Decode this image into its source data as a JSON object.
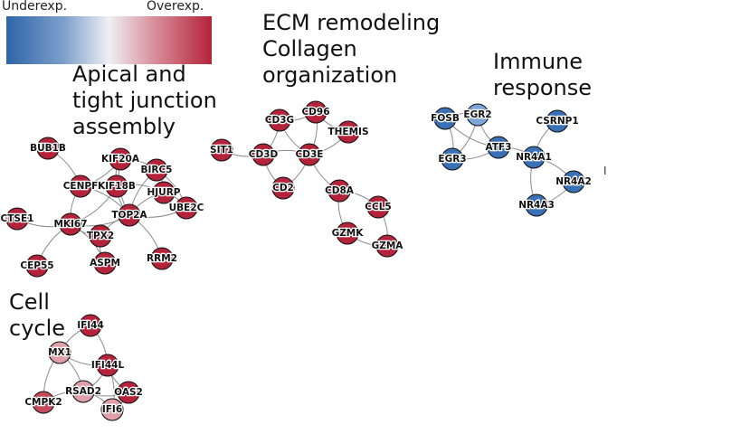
{
  "legend": {
    "low_label": "Underexp.",
    "high_label": "Overexp."
  },
  "colors": {
    "high": "#b4233a",
    "mid_high": "#c54a5b",
    "light_pink": "#e0a0aa",
    "low": "#3a70b5",
    "light_blue": "#7ea5d6"
  },
  "clusters": [
    {
      "id": "apical",
      "label": "Apical and\ntight junction\nassembly"
    },
    {
      "id": "ecm",
      "label": "ECM remodeling\nCollagen\norganization"
    },
    {
      "id": "immune",
      "label": "Immune\nresponse"
    },
    {
      "id": "cellcycle",
      "label": "Cell\ncycle"
    }
  ],
  "stray_mark": "I",
  "nodes": [
    {
      "id": "BUB1B",
      "color": "#b4233a"
    },
    {
      "id": "KIF20A",
      "color": "#b4233a"
    },
    {
      "id": "BIRC5",
      "color": "#b4233a"
    },
    {
      "id": "CENPF",
      "color": "#b4233a"
    },
    {
      "id": "KIF18B",
      "color": "#b4233a"
    },
    {
      "id": "HJURP",
      "color": "#b4233a"
    },
    {
      "id": "UBE2C",
      "color": "#b4233a"
    },
    {
      "id": "TOP2A",
      "color": "#b4233a"
    },
    {
      "id": "CTSE1",
      "color": "#b4233a"
    },
    {
      "id": "MKI67",
      "color": "#b4233a"
    },
    {
      "id": "TPX2",
      "color": "#b4233a"
    },
    {
      "id": "RRM2",
      "color": "#b4233a"
    },
    {
      "id": "ASPM",
      "color": "#b4233a"
    },
    {
      "id": "CEP55",
      "color": "#b4233a"
    },
    {
      "id": "CD3G",
      "color": "#b4233a"
    },
    {
      "id": "CD96",
      "color": "#b4233a"
    },
    {
      "id": "THEMIS",
      "color": "#b4233a"
    },
    {
      "id": "SIT1",
      "color": "#b4233a"
    },
    {
      "id": "CD3D",
      "color": "#b4233a"
    },
    {
      "id": "CD3E",
      "color": "#b4233a"
    },
    {
      "id": "CD2",
      "color": "#b4233a"
    },
    {
      "id": "CD8A",
      "color": "#b4233a"
    },
    {
      "id": "CCL5",
      "color": "#b4233a"
    },
    {
      "id": "GZMK",
      "color": "#b4233a"
    },
    {
      "id": "GZMA",
      "color": "#b4233a"
    },
    {
      "id": "FOSB",
      "color": "#3a70b5"
    },
    {
      "id": "EGR2",
      "color": "#7ea5d6"
    },
    {
      "id": "ATF3",
      "color": "#3a70b5"
    },
    {
      "id": "EGR3",
      "color": "#3a70b5"
    },
    {
      "id": "CSRNP1",
      "color": "#3a70b5"
    },
    {
      "id": "NR4A1",
      "color": "#3a70b5"
    },
    {
      "id": "NR4A2",
      "color": "#3a70b5"
    },
    {
      "id": "NR4A3",
      "color": "#3a70b5"
    },
    {
      "id": "IFI44",
      "color": "#b4233a"
    },
    {
      "id": "MX1",
      "color": "#e0a0aa"
    },
    {
      "id": "IFI44L",
      "color": "#b4233a"
    },
    {
      "id": "RSAD2",
      "color": "#e0a0aa"
    },
    {
      "id": "OAS2",
      "color": "#b4233a"
    },
    {
      "id": "CMPK2",
      "color": "#c54a5b"
    },
    {
      "id": "IFI6",
      "color": "#e0a0aa"
    }
  ],
  "edges": [
    [
      "BUB1B",
      "CENPF"
    ],
    [
      "CENPF",
      "KIF20A"
    ],
    [
      "CENPF",
      "KIF18B"
    ],
    [
      "CENPF",
      "MKI67"
    ],
    [
      "CENPF",
      "TOP2A"
    ],
    [
      "KIF20A",
      "KIF18B"
    ],
    [
      "KIF20A",
      "BIRC5"
    ],
    [
      "KIF20A",
      "TOP2A"
    ],
    [
      "BIRC5",
      "HJURP"
    ],
    [
      "BIRC5",
      "TOP2A"
    ],
    [
      "BIRC5",
      "UBE2C"
    ],
    [
      "KIF18B",
      "TOP2A"
    ],
    [
      "KIF18B",
      "HJURP"
    ],
    [
      "HJURP",
      "TOP2A"
    ],
    [
      "HJURP",
      "UBE2C"
    ],
    [
      "TOP2A",
      "UBE2C"
    ],
    [
      "TOP2A",
      "MKI67"
    ],
    [
      "TOP2A",
      "TPX2"
    ],
    [
      "TOP2A",
      "RRM2"
    ],
    [
      "MKI67",
      "TPX2"
    ],
    [
      "MKI67",
      "CTSE1"
    ],
    [
      "MKI67",
      "CEP55"
    ],
    [
      "MKI67",
      "ASPM"
    ],
    [
      "TPX2",
      "ASPM"
    ],
    [
      "KIF18B",
      "MKI67"
    ],
    [
      "CD3G",
      "CD96"
    ],
    [
      "CD3G",
      "CD3D"
    ],
    [
      "CD3G",
      "CD3E"
    ],
    [
      "CD96",
      "CD3E"
    ],
    [
      "CD96",
      "THEMIS"
    ],
    [
      "THEMIS",
      "CD3E"
    ],
    [
      "SIT1",
      "CD3D"
    ],
    [
      "CD3D",
      "CD3E"
    ],
    [
      "CD3D",
      "CD2"
    ],
    [
      "CD3E",
      "CD2"
    ],
    [
      "CD3E",
      "CD8A"
    ],
    [
      "CD8A",
      "CCL5"
    ],
    [
      "CD8A",
      "GZMK"
    ],
    [
      "CCL5",
      "GZMA"
    ],
    [
      "GZMK",
      "GZMA"
    ],
    [
      "FOSB",
      "EGR2"
    ],
    [
      "FOSB",
      "ATF3"
    ],
    [
      "FOSB",
      "EGR3"
    ],
    [
      "EGR2",
      "ATF3"
    ],
    [
      "EGR2",
      "EGR3"
    ],
    [
      "EGR3",
      "ATF3"
    ],
    [
      "ATF3",
      "NR4A1"
    ],
    [
      "CSRNP1",
      "NR4A1"
    ],
    [
      "NR4A1",
      "NR4A2"
    ],
    [
      "NR4A1",
      "NR4A3"
    ],
    [
      "NR4A2",
      "NR4A3"
    ],
    [
      "IFI44",
      "MX1"
    ],
    [
      "IFI44",
      "IFI44L"
    ],
    [
      "MX1",
      "IFI44L"
    ],
    [
      "MX1",
      "RSAD2"
    ],
    [
      "MX1",
      "CMPK2"
    ],
    [
      "IFI44L",
      "RSAD2"
    ],
    [
      "IFI44L",
      "OAS2"
    ],
    [
      "IFI44L",
      "IFI6"
    ],
    [
      "RSAD2",
      "CMPK2"
    ],
    [
      "RSAD2",
      "IFI6"
    ],
    [
      "RSAD2",
      "OAS2"
    ],
    [
      "OAS2",
      "IFI6"
    ]
  ]
}
